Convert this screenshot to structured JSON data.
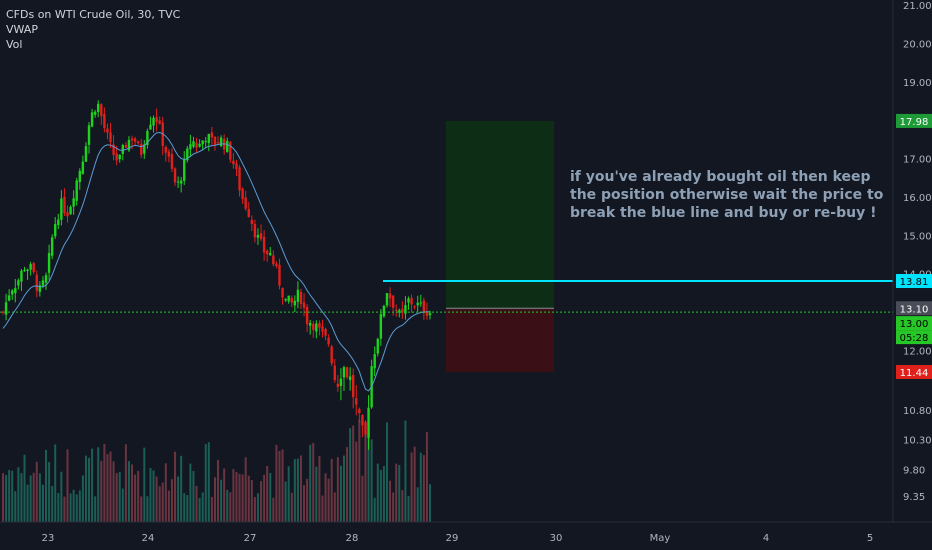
{
  "legend": {
    "symbol_line": "CFDs on WTI Crude Oil, 30, TVC",
    "indicator_vwap": "VWAP",
    "indicator_vol": "Vol"
  },
  "annotation": {
    "line1": "if you've already bought oil then keep",
    "line2": "the position otherwise wait the price to",
    "line3": "break the blue line and buy or re-buy !"
  },
  "price_axis": {
    "ticks": [
      "21.00",
      "20.00",
      "19.00",
      "17.00",
      "16.00",
      "15.00",
      "14.00",
      "12.00",
      "10.80",
      "10.30",
      "9.80",
      "9.35"
    ],
    "tick_values": [
      21,
      20,
      19,
      17,
      16,
      15,
      14,
      12,
      10.8,
      10.3,
      9.8,
      9.35
    ]
  },
  "time_axis": {
    "labels": [
      "23",
      "24",
      "27",
      "28",
      "29",
      "30",
      "May",
      "4",
      "5"
    ],
    "positions_index": [
      0,
      1,
      2,
      3,
      4,
      5,
      6,
      7,
      8
    ]
  },
  "badges": {
    "target": {
      "text": "17.98",
      "value": 17.98,
      "color": "#1e9b36"
    },
    "resistance": {
      "text": "13.81",
      "value": 13.81,
      "color": "#00e5ff"
    },
    "entry": {
      "text": "13.10",
      "value": 13.1,
      "color": "#4a4d57"
    },
    "last_price": {
      "text": "13.00",
      "value": 13.0,
      "color": "#26c726"
    },
    "countdown": {
      "text": "05:28",
      "color": "#26c726"
    },
    "stop": {
      "text": "11.44",
      "value": 11.44,
      "color": "#e0201b"
    }
  },
  "colors": {
    "background": "#131722",
    "up_candle": "#1ed31e",
    "down_candle": "#e0201b",
    "vwap": "#5b9bd5",
    "resistance_line": "#00e5ff",
    "last_price_line": "#26c726",
    "profit_zone": "#0d2e14",
    "loss_zone": "#3a1016"
  },
  "chart_data": {
    "type": "candlestick",
    "symbol": "CFDs on WTI Crude Oil, 30, TVC",
    "price_range": [
      9.0,
      21.2
    ],
    "resistance_level": 13.81,
    "last_price": 13.0,
    "position": {
      "entry": 13.1,
      "target": 17.98,
      "stop": 11.44
    },
    "close_path": [
      13.0,
      13.6,
      13.8,
      14.2,
      14.1,
      13.5,
      13.9,
      15.2,
      15.8,
      15.6,
      16.3,
      17.0,
      18.0,
      18.5,
      17.8,
      17.2,
      16.9,
      17.4,
      17.6,
      17.1,
      17.9,
      18.2,
      17.5,
      16.9,
      16.2,
      16.8,
      17.5,
      17.3,
      17.6,
      17.4,
      17.5,
      17.3,
      16.8,
      16.0,
      15.6,
      15.0,
      14.6,
      14.5,
      13.9,
      13.3,
      13.2,
      13.5,
      12.8,
      12.7,
      12.4,
      12.2,
      11.2,
      11.6,
      11.3,
      10.7,
      10.2,
      11.7,
      12.6,
      13.6,
      13.2,
      12.8,
      13.3,
      13.2,
      13.1,
      13.0
    ]
  }
}
